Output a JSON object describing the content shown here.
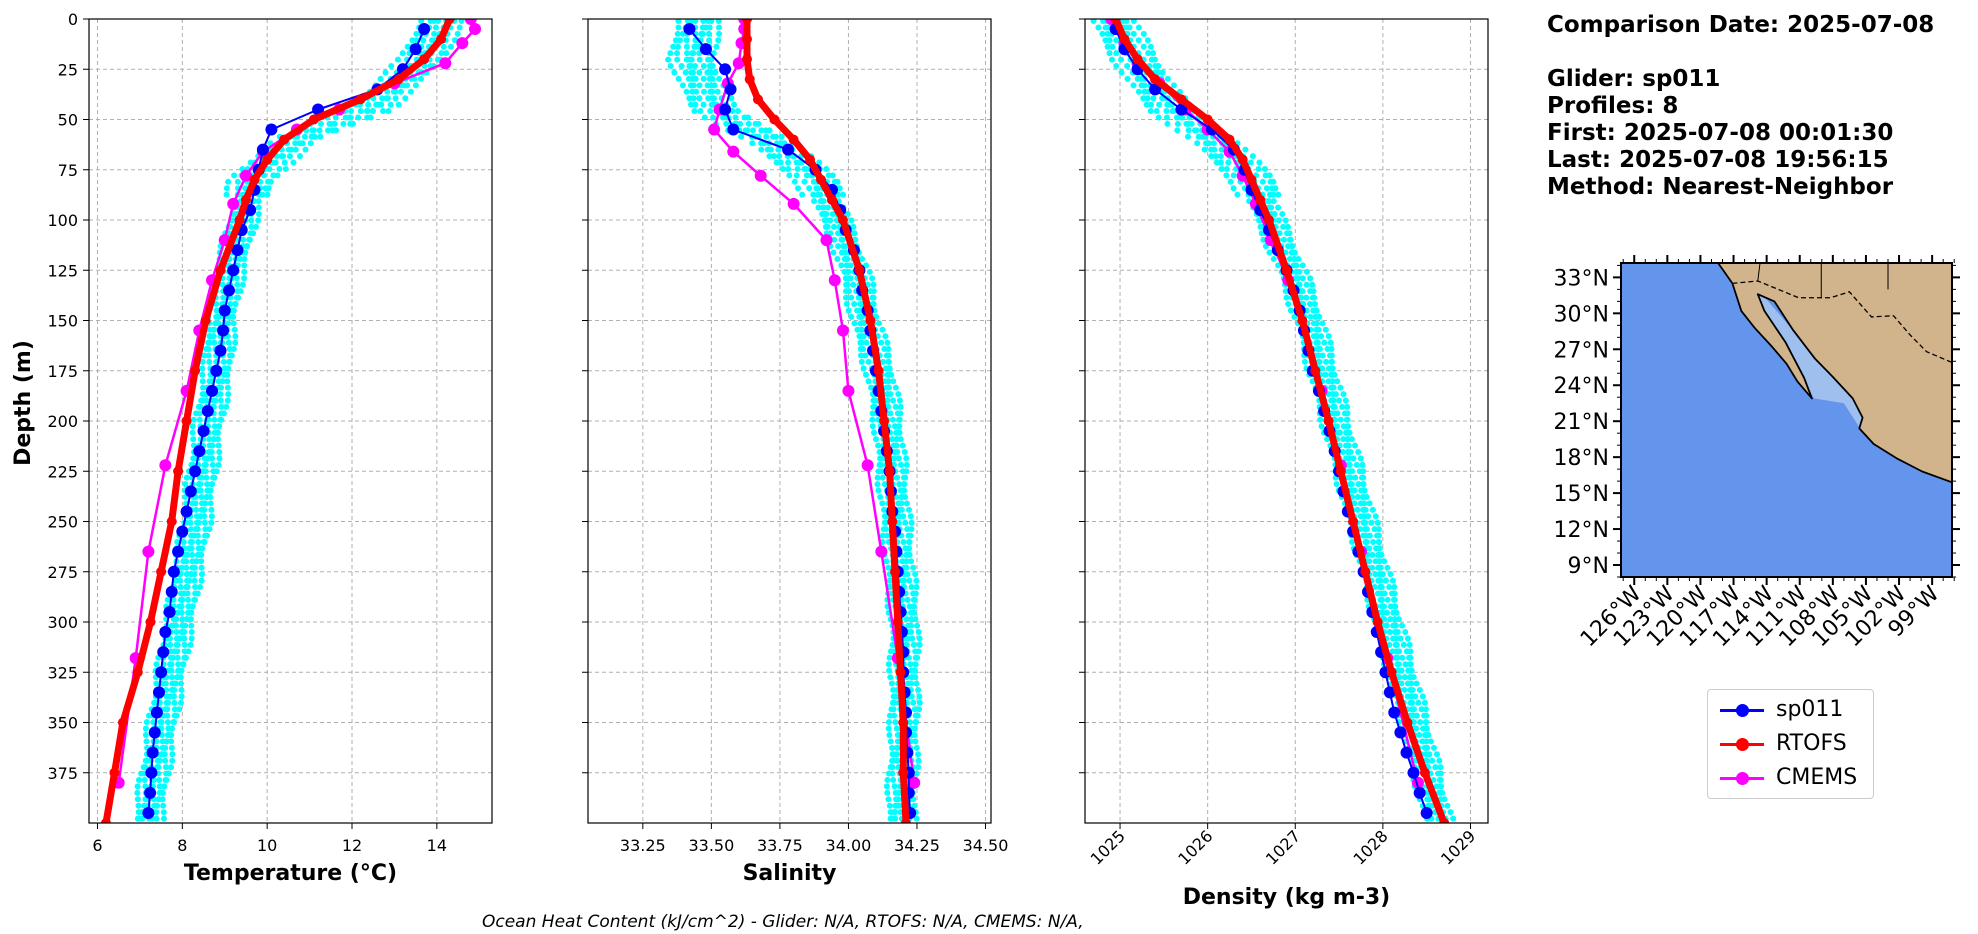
{
  "info": {
    "comparison_date": "Comparison Date: 2025-07-08",
    "glider": "Glider: sp011",
    "profiles": "Profiles: 8",
    "first": "First: 2025-07-08 00:01:30",
    "last": "Last: 2025-07-08 19:56:15",
    "method": "Method: Nearest-Neighbor"
  },
  "footer": "Ocean Heat Content (kJ/cm^2) - Glider: N/A,  RTOFS: N/A,  CMEMS: N/A,",
  "legend": [
    {
      "name": "sp011",
      "color": "#0000ff"
    },
    {
      "name": "RTOFS",
      "color": "#ff0000"
    },
    {
      "name": "CMEMS",
      "color": "#ff00ff"
    }
  ],
  "colors": {
    "glider_raw": "#00ffff",
    "ocean": "#6495ed",
    "land": "#d2b48c",
    "shelf": "#9fc0ee"
  },
  "chart_data": [
    {
      "type": "line",
      "xlabel": "Temperature (°C)",
      "ylabel": "Depth (m)",
      "xlim": [
        5.8,
        15.3
      ],
      "ylim": [
        400,
        0
      ],
      "xticks": [
        "6",
        "8",
        "10",
        "12",
        "14"
      ],
      "yticks": [
        "0",
        "25",
        "50",
        "75",
        "100",
        "125",
        "150",
        "175",
        "200",
        "225",
        "250",
        "275",
        "300",
        "325",
        "350",
        "375"
      ],
      "grid": true,
      "raw_profiles": {
        "name": "sp011 raw",
        "depth": [
          0,
          20,
          45,
          60,
          80,
          100,
          125,
          150,
          175,
          200,
          250,
          300,
          350,
          395
        ],
        "center": [
          14.1,
          13.6,
          12.4,
          10.6,
          9.6,
          9.4,
          9.1,
          8.9,
          8.8,
          8.6,
          8.3,
          7.9,
          7.5,
          7.2
        ]
      },
      "series": [
        {
          "name": "sp011",
          "depth": [
            5,
            15,
            25,
            35,
            45,
            55,
            65,
            75,
            85,
            95,
            105,
            115,
            125,
            135,
            145,
            155,
            165,
            175,
            185,
            195,
            205,
            215,
            225,
            235,
            245,
            255,
            265,
            275,
            285,
            295,
            305,
            315,
            325,
            335,
            345,
            355,
            365,
            375,
            385,
            395
          ],
          "values": [
            13.7,
            13.5,
            13.2,
            12.6,
            11.2,
            10.1,
            9.9,
            9.8,
            9.7,
            9.6,
            9.4,
            9.3,
            9.2,
            9.1,
            9.0,
            8.96,
            8.9,
            8.8,
            8.7,
            8.6,
            8.5,
            8.4,
            8.3,
            8.2,
            8.1,
            8.0,
            7.9,
            7.8,
            7.75,
            7.7,
            7.6,
            7.55,
            7.5,
            7.45,
            7.4,
            7.35,
            7.3,
            7.27,
            7.24,
            7.2
          ]
        },
        {
          "name": "RTOFS",
          "depth": [
            0,
            10,
            20,
            30,
            40,
            50,
            60,
            70,
            80,
            90,
            100,
            125,
            150,
            175,
            200,
            225,
            250,
            275,
            300,
            325,
            350,
            375,
            400
          ],
          "values": [
            14.3,
            14.1,
            13.7,
            13.1,
            12.2,
            11.1,
            10.4,
            10.0,
            9.7,
            9.5,
            9.35,
            8.9,
            8.55,
            8.3,
            8.1,
            7.9,
            7.75,
            7.5,
            7.25,
            6.95,
            6.6,
            6.4,
            6.2
          ]
        },
        {
          "name": "CMEMS",
          "depth": [
            0,
            5,
            12,
            22,
            32,
            45,
            55,
            66,
            78,
            92,
            110,
            130,
            155,
            185,
            222,
            265,
            318,
            380
          ],
          "values": [
            14.8,
            14.9,
            14.6,
            14.2,
            13.0,
            11.7,
            10.7,
            9.9,
            9.5,
            9.2,
            9.0,
            8.7,
            8.4,
            8.1,
            7.6,
            7.2,
            6.9,
            6.5
          ]
        }
      ]
    },
    {
      "type": "line",
      "xlabel": "Salinity",
      "xlim": [
        33.05,
        34.52
      ],
      "ylim": [
        400,
        0
      ],
      "xticks": [
        "33.25",
        "33.50",
        "33.75",
        "34.00",
        "34.25",
        "34.50"
      ],
      "grid": true,
      "raw_profiles": {
        "name": "sp011 raw",
        "depth": [
          0,
          20,
          45,
          60,
          80,
          100,
          125,
          150,
          175,
          200,
          250,
          300,
          350,
          395
        ],
        "center": [
          33.45,
          33.42,
          33.5,
          33.7,
          33.88,
          33.95,
          34.02,
          34.06,
          34.11,
          34.14,
          34.17,
          34.2,
          34.2,
          34.19
        ]
      },
      "series": [
        {
          "name": "sp011",
          "depth": [
            5,
            15,
            25,
            35,
            45,
            55,
            65,
            75,
            85,
            95,
            105,
            115,
            125,
            135,
            145,
            155,
            165,
            175,
            185,
            195,
            205,
            215,
            225,
            235,
            245,
            255,
            265,
            275,
            285,
            295,
            305,
            315,
            325,
            335,
            345,
            355,
            365,
            375,
            385,
            395
          ],
          "values": [
            33.42,
            33.48,
            33.55,
            33.57,
            33.55,
            33.58,
            33.78,
            33.88,
            33.94,
            33.97,
            33.99,
            34.02,
            34.04,
            34.05,
            34.07,
            34.08,
            34.09,
            34.1,
            34.11,
            34.12,
            34.13,
            34.14,
            34.15,
            34.155,
            34.16,
            34.17,
            34.175,
            34.18,
            34.185,
            34.19,
            34.195,
            34.2,
            34.2,
            34.205,
            34.21,
            34.21,
            34.215,
            34.22,
            34.22,
            34.225
          ]
        },
        {
          "name": "RTOFS",
          "depth": [
            0,
            10,
            20,
            30,
            40,
            50,
            60,
            70,
            80,
            90,
            100,
            125,
            150,
            175,
            200,
            225,
            250,
            275,
            300,
            325,
            350,
            375,
            400
          ],
          "values": [
            33.63,
            33.63,
            33.63,
            33.64,
            33.67,
            33.73,
            33.8,
            33.86,
            33.9,
            33.94,
            33.98,
            34.04,
            34.08,
            34.11,
            34.13,
            34.15,
            34.16,
            34.17,
            34.18,
            34.19,
            34.2,
            34.2,
            34.21
          ]
        },
        {
          "name": "CMEMS",
          "depth": [
            0,
            5,
            12,
            22,
            32,
            45,
            55,
            66,
            78,
            92,
            110,
            130,
            155,
            185,
            222,
            265,
            318,
            380
          ],
          "values": [
            33.62,
            33.62,
            33.61,
            33.6,
            33.56,
            33.53,
            33.51,
            33.58,
            33.68,
            33.8,
            33.92,
            33.95,
            33.98,
            34.0,
            34.07,
            34.12,
            34.18,
            34.24
          ]
        }
      ]
    },
    {
      "type": "line",
      "xlabel": "Density (kg m-3)",
      "xlim": [
        1024.6,
        1029.2
      ],
      "ylim": [
        400,
        0
      ],
      "xticks": [
        "1025",
        "1026",
        "1027",
        "1028",
        "1029"
      ],
      "grid": true,
      "raw_profiles": {
        "name": "sp011 raw",
        "depth": [
          0,
          20,
          45,
          60,
          80,
          100,
          125,
          150,
          175,
          200,
          250,
          300,
          350,
          395
        ],
        "center": [
          1024.9,
          1025.15,
          1025.55,
          1026.05,
          1026.5,
          1026.7,
          1026.95,
          1027.15,
          1027.3,
          1027.45,
          1027.75,
          1028.05,
          1028.35,
          1028.6
        ]
      },
      "series": [
        {
          "name": "sp011",
          "depth": [
            5,
            15,
            25,
            35,
            45,
            55,
            65,
            75,
            85,
            95,
            105,
            115,
            125,
            135,
            145,
            155,
            165,
            175,
            185,
            195,
            205,
            215,
            225,
            235,
            245,
            255,
            265,
            275,
            285,
            295,
            305,
            315,
            325,
            335,
            345,
            355,
            365,
            375,
            385,
            395
          ],
          "values": [
            1024.95,
            1025.05,
            1025.2,
            1025.4,
            1025.7,
            1026.05,
            1026.3,
            1026.42,
            1026.5,
            1026.6,
            1026.7,
            1026.8,
            1026.9,
            1026.98,
            1027.05,
            1027.1,
            1027.15,
            1027.2,
            1027.27,
            1027.33,
            1027.39,
            1027.45,
            1027.5,
            1027.55,
            1027.6,
            1027.66,
            1027.72,
            1027.78,
            1027.83,
            1027.88,
            1027.93,
            1027.98,
            1028.03,
            1028.08,
            1028.13,
            1028.2,
            1028.27,
            1028.35,
            1028.42,
            1028.5
          ]
        },
        {
          "name": "RTOFS",
          "depth": [
            0,
            10,
            20,
            30,
            40,
            50,
            60,
            70,
            80,
            90,
            100,
            125,
            150,
            175,
            200,
            225,
            250,
            275,
            300,
            325,
            350,
            375,
            400
          ],
          "values": [
            1024.95,
            1025.05,
            1025.2,
            1025.4,
            1025.7,
            1026.0,
            1026.25,
            1026.4,
            1026.5,
            1026.6,
            1026.7,
            1026.9,
            1027.08,
            1027.23,
            1027.38,
            1027.52,
            1027.66,
            1027.8,
            1027.94,
            1028.1,
            1028.28,
            1028.48,
            1028.7
          ]
        },
        {
          "name": "CMEMS",
          "depth": [
            0,
            5,
            12,
            22,
            32,
            45,
            55,
            66,
            78,
            92,
            110,
            130,
            155,
            185,
            222,
            265,
            318,
            380
          ],
          "values": [
            1024.9,
            1024.95,
            1025.05,
            1025.2,
            1025.45,
            1025.75,
            1026.0,
            1026.25,
            1026.4,
            1026.55,
            1026.72,
            1026.92,
            1027.1,
            1027.3,
            1027.52,
            1027.75,
            1028.05,
            1028.4
          ]
        }
      ]
    }
  ],
  "map": {
    "lat_ticks": [
      "33°N",
      "30°N",
      "27°N",
      "24°N",
      "21°N",
      "18°N",
      "15°N",
      "12°N",
      "9°N"
    ],
    "lon_ticks": [
      "126°W",
      "123°W",
      "120°W",
      "117°W",
      "114°W",
      "111°W",
      "108°W",
      "105°W",
      "102°W",
      "99°W"
    ],
    "lat_range": [
      8,
      34.2
    ],
    "lon_range": [
      -127.2,
      -97.2
    ]
  }
}
